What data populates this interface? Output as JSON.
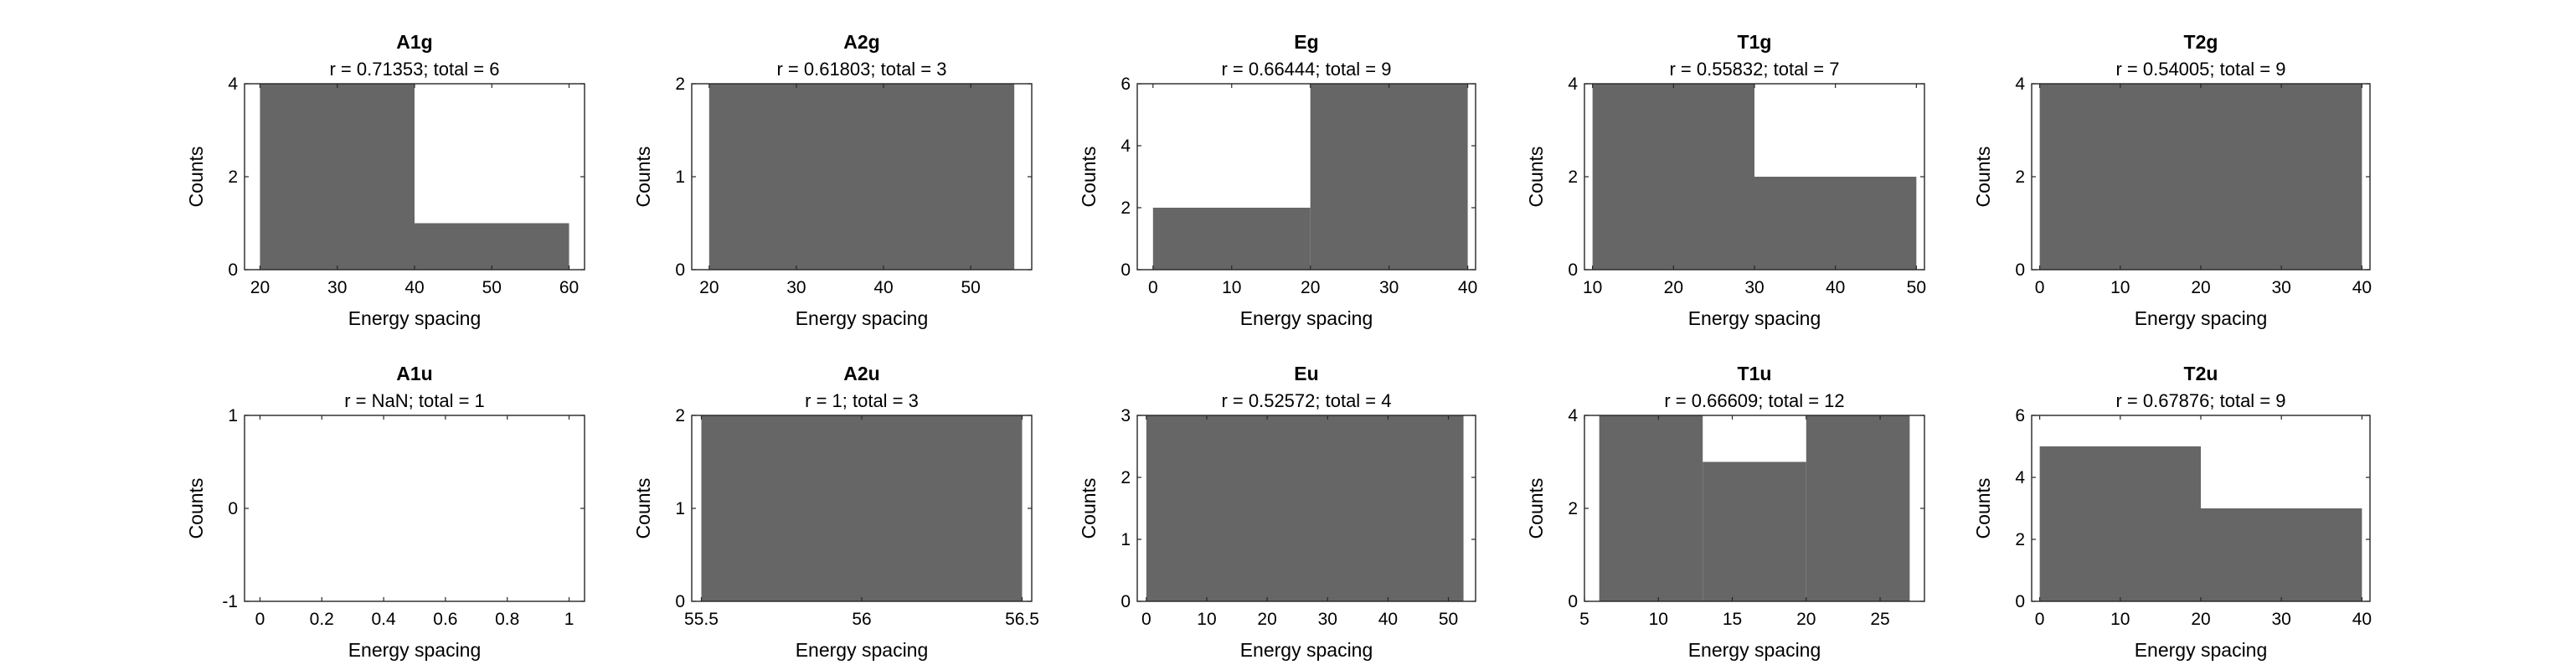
{
  "figure": {
    "xlabel": "Energy spacing",
    "ylabel": "Counts"
  },
  "chart_data": [
    {
      "type": "bar",
      "title": "A1g",
      "subtitle": "r = 0.71353; total = 6",
      "xlim": [
        18,
        62
      ],
      "ylim": [
        0,
        4
      ],
      "xticks": [
        20,
        30,
        40,
        50,
        60
      ],
      "yticks": [
        0,
        2,
        4
      ],
      "bins": [
        {
          "from": 20,
          "to": 40,
          "count": 4
        },
        {
          "from": 40,
          "to": 60,
          "count": 1
        }
      ]
    },
    {
      "type": "bar",
      "title": "A2g",
      "subtitle": "r = 0.61803; total = 3",
      "xlim": [
        18,
        57
      ],
      "ylim": [
        0,
        2
      ],
      "xticks": [
        20,
        30,
        40,
        50
      ],
      "yticks": [
        0,
        1,
        2
      ],
      "bins": [
        {
          "from": 20,
          "to": 55,
          "count": 2
        }
      ]
    },
    {
      "type": "bar",
      "title": "Eg",
      "subtitle": "r = 0.66444; total = 9",
      "xlim": [
        -2,
        41
      ],
      "ylim": [
        0,
        6
      ],
      "xticks": [
        0,
        10,
        20,
        30,
        40
      ],
      "yticks": [
        0,
        2,
        4,
        6
      ],
      "bins": [
        {
          "from": 0,
          "to": 20,
          "count": 2
        },
        {
          "from": 20,
          "to": 40,
          "count": 6
        }
      ]
    },
    {
      "type": "bar",
      "title": "T1g",
      "subtitle": "r = 0.55832; total = 7",
      "xlim": [
        9,
        51
      ],
      "ylim": [
        0,
        4
      ],
      "xticks": [
        10,
        20,
        30,
        40,
        50
      ],
      "yticks": [
        0,
        2,
        4
      ],
      "bins": [
        {
          "from": 10,
          "to": 30,
          "count": 4
        },
        {
          "from": 30,
          "to": 50,
          "count": 2
        }
      ]
    },
    {
      "type": "bar",
      "title": "T2g",
      "subtitle": "r = 0.54005; total = 9",
      "xlim": [
        -1,
        41
      ],
      "ylim": [
        0,
        4
      ],
      "xticks": [
        0,
        10,
        20,
        30,
        40
      ],
      "yticks": [
        0,
        2,
        4
      ],
      "bins": [
        {
          "from": 0,
          "to": 40,
          "count": 4
        }
      ]
    },
    {
      "type": "bar",
      "title": "A1u",
      "subtitle": "r = NaN; total = 1",
      "xlim": [
        -0.05,
        1.05
      ],
      "ylim": [
        -1,
        1
      ],
      "xticks": [
        0,
        0.2,
        0.4,
        0.6,
        0.8,
        1
      ],
      "yticks": [
        -1,
        0,
        1
      ],
      "bins": []
    },
    {
      "type": "bar",
      "title": "A2u",
      "subtitle": "r = 1; total = 3",
      "xlim": [
        55.47,
        56.53
      ],
      "ylim": [
        0,
        2
      ],
      "xticks": [
        55.5,
        56,
        56.5
      ],
      "yticks": [
        0,
        1,
        2
      ],
      "bins": [
        {
          "from": 55.5,
          "to": 56.5,
          "count": 2
        }
      ]
    },
    {
      "type": "bar",
      "title": "Eu",
      "subtitle": "r = 0.52572; total = 4",
      "xlim": [
        -1.5,
        54.5
      ],
      "ylim": [
        0,
        3
      ],
      "xticks": [
        0,
        10,
        20,
        30,
        40,
        50
      ],
      "yticks": [
        0,
        1,
        2,
        3
      ],
      "bins": [
        {
          "from": 0,
          "to": 52.5,
          "count": 3
        }
      ]
    },
    {
      "type": "bar",
      "title": "T1u",
      "subtitle": "r = 0.66609; total = 12",
      "xlim": [
        5,
        28
      ],
      "ylim": [
        0,
        4
      ],
      "xticks": [
        5,
        10,
        15,
        20,
        25
      ],
      "yticks": [
        0,
        2,
        4
      ],
      "bins": [
        {
          "from": 6,
          "to": 13,
          "count": 4
        },
        {
          "from": 13,
          "to": 20,
          "count": 3
        },
        {
          "from": 20,
          "to": 27,
          "count": 4
        }
      ]
    },
    {
      "type": "bar",
      "title": "T2u",
      "subtitle": "r = 0.67876; total = 9",
      "xlim": [
        -1,
        41
      ],
      "ylim": [
        0,
        6
      ],
      "xticks": [
        0,
        10,
        20,
        30,
        40
      ],
      "yticks": [
        0,
        2,
        4,
        6
      ],
      "bins": [
        {
          "from": 0,
          "to": 20,
          "count": 5
        },
        {
          "from": 20,
          "to": 40,
          "count": 3
        }
      ]
    }
  ],
  "colors": {
    "bar_fill": "#666666",
    "axis": "#262626",
    "text": "#000000"
  }
}
